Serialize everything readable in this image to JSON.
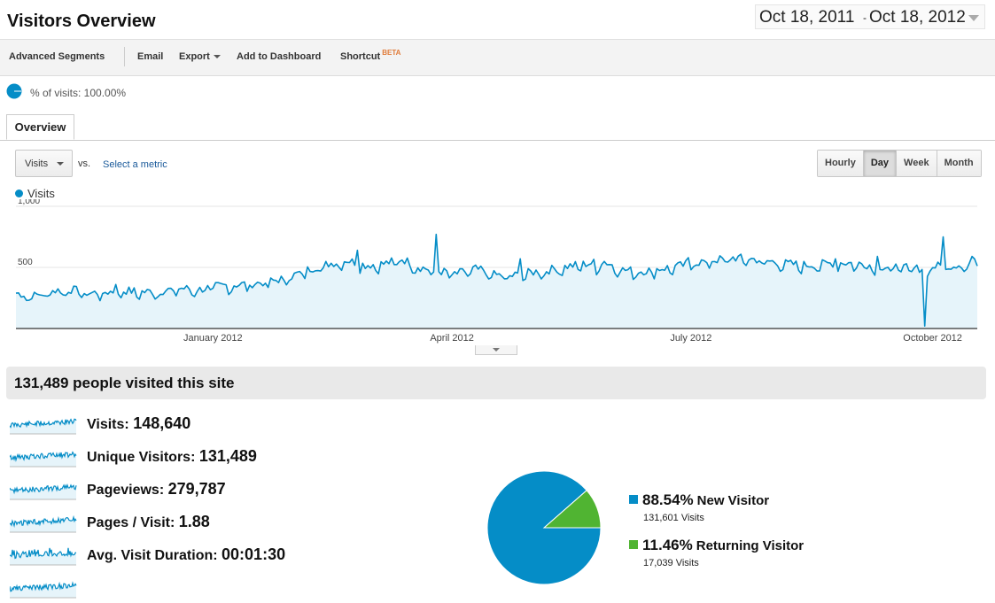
{
  "header": {
    "title": "Visitors Overview",
    "date_start": "Oct 18, 2011",
    "date_sep": "-",
    "date_end": "Oct 18, 2012"
  },
  "toolbar": {
    "advanced_segments": "Advanced Segments",
    "email": "Email",
    "export": "Export",
    "add_to_dashboard": "Add to Dashboard",
    "shortcut": "Shortcut",
    "beta": "BETA"
  },
  "segment": {
    "text": "% of visits: 100.00%"
  },
  "tabs": {
    "overview": "Overview"
  },
  "controls": {
    "metric": "Visits",
    "vs": "vs.",
    "select_metric": "Select a metric",
    "granularity": [
      "Hourly",
      "Day",
      "Week",
      "Month"
    ],
    "active_granularity": "Day"
  },
  "colors": {
    "series": "#058dc7",
    "series_fill": "#e6f4fa",
    "new_visitor": "#058dc7",
    "returning_visitor": "#50b432"
  },
  "chart_data": {
    "type": "area",
    "series": [
      {
        "name": "Visits",
        "anchors": [
          [
            "2011-10-18",
            280
          ],
          [
            "2011-10-25",
            260
          ],
          [
            "2011-11-01",
            300
          ],
          [
            "2011-11-08",
            310
          ],
          [
            "2011-11-15",
            280
          ],
          [
            "2011-11-22",
            290
          ],
          [
            "2011-11-29",
            300
          ],
          [
            "2011-12-06",
            290
          ],
          [
            "2011-12-13",
            300
          ],
          [
            "2011-12-20",
            320
          ],
          [
            "2011-12-27",
            310
          ],
          [
            "2012-01-03",
            340
          ],
          [
            "2012-01-10",
            350
          ],
          [
            "2012-01-17",
            360
          ],
          [
            "2012-01-24",
            380
          ],
          [
            "2012-01-31",
            420
          ],
          [
            "2012-02-07",
            480
          ],
          [
            "2012-02-14",
            520
          ],
          [
            "2012-02-21",
            550
          ],
          [
            "2012-02-28",
            510
          ],
          [
            "2012-03-06",
            520
          ],
          [
            "2012-03-13",
            560
          ],
          [
            "2012-03-20",
            490
          ],
          [
            "2012-03-27",
            460
          ],
          [
            "2012-04-03",
            440
          ],
          [
            "2012-04-10",
            480
          ],
          [
            "2012-04-17",
            430
          ],
          [
            "2012-04-24",
            420
          ],
          [
            "2012-05-01",
            450
          ],
          [
            "2012-05-08",
            470
          ],
          [
            "2012-05-15",
            500
          ],
          [
            "2012-05-22",
            520
          ],
          [
            "2012-05-29",
            540
          ],
          [
            "2012-06-05",
            470
          ],
          [
            "2012-06-12",
            460
          ],
          [
            "2012-06-19",
            480
          ],
          [
            "2012-06-26",
            500
          ],
          [
            "2012-07-03",
            530
          ],
          [
            "2012-07-10",
            550
          ],
          [
            "2012-07-17",
            570
          ],
          [
            "2012-07-24",
            560
          ],
          [
            "2012-07-31",
            540
          ],
          [
            "2012-08-07",
            520
          ],
          [
            "2012-08-14",
            510
          ],
          [
            "2012-08-21",
            520
          ],
          [
            "2012-08-28",
            530
          ],
          [
            "2012-09-04",
            520
          ],
          [
            "2012-09-11",
            500
          ],
          [
            "2012-09-18",
            490
          ],
          [
            "2012-09-25",
            480
          ],
          [
            "2012-10-02",
            500
          ],
          [
            "2012-10-09",
            510
          ],
          [
            "2012-10-18",
            530
          ]
        ]
      }
    ],
    "spikes": [
      [
        "2011-11-25",
        360
      ],
      [
        "2012-02-25",
        640
      ],
      [
        "2012-03-26",
        770
      ],
      [
        "2012-04-27",
        570
      ],
      [
        "2012-05-26",
        440
      ],
      [
        "2012-06-30",
        580
      ],
      [
        "2012-08-25",
        570
      ],
      [
        "2012-09-10",
        590
      ],
      [
        "2012-09-28",
        20
      ],
      [
        "2012-10-05",
        750
      ],
      [
        "2012-10-16",
        590
      ]
    ],
    "x_ticks": [
      "January 2012",
      "April 2012",
      "July 2012",
      "October 2012"
    ],
    "y_ticks": [
      "1,000",
      "500"
    ],
    "ylim": [
      0,
      1000
    ],
    "xlim": [
      "2011-10-18",
      "2012-10-18"
    ],
    "grid": true,
    "legend": "top-left"
  },
  "summary": {
    "title": "131,489 people visited this site",
    "metrics": [
      {
        "label": "Visits:",
        "value": "148,640"
      },
      {
        "label": "Unique Visitors:",
        "value": "131,489"
      },
      {
        "label": "Pageviews:",
        "value": "279,787"
      },
      {
        "label": "Pages / Visit:",
        "value": "1.88"
      },
      {
        "label": "Avg. Visit Duration:",
        "value": "00:01:30"
      }
    ]
  },
  "pie": {
    "type": "pie",
    "slices": [
      {
        "name": "New Visitor",
        "pct": "88.54%",
        "visits": "131,601 Visits",
        "value": 88.54,
        "color": "#058dc7"
      },
      {
        "name": "Returning Visitor",
        "pct": "11.46%",
        "visits": "17,039 Visits",
        "value": 11.46,
        "color": "#50b432"
      }
    ]
  }
}
